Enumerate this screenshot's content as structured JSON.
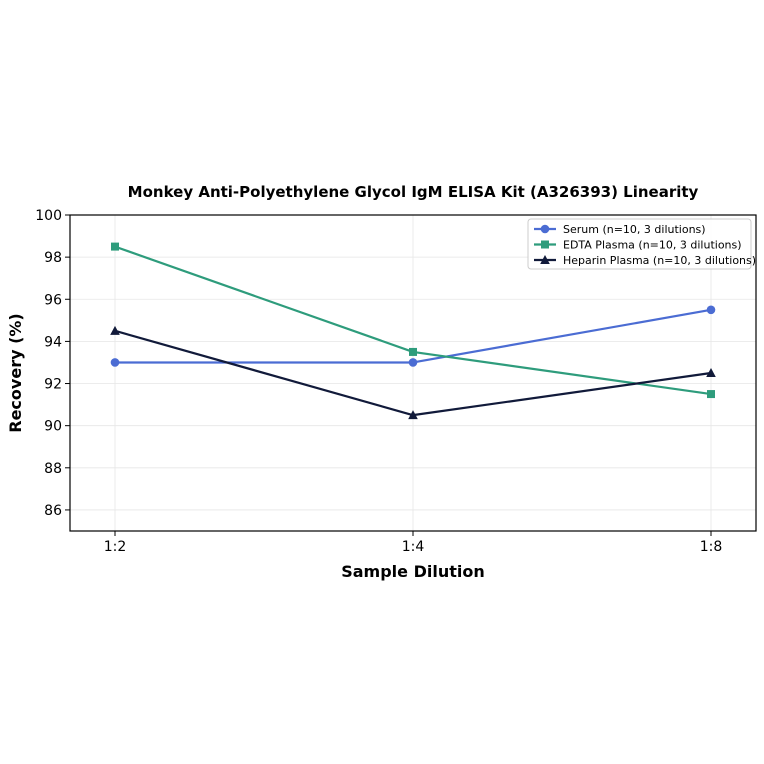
{
  "chart_data": {
    "type": "line",
    "title": "Monkey Anti-Polyethylene Glycol IgM ELISA Kit (A326393) Linearity",
    "xlabel": "Sample Dilution",
    "ylabel": "Recovery (%)",
    "categories": [
      "1:2",
      "1:4",
      "1:8"
    ],
    "ylim": [
      85,
      100
    ],
    "yticks": [
      86,
      88,
      90,
      92,
      94,
      96,
      98,
      100
    ],
    "grid": true,
    "legend_position": "top-right",
    "series": [
      {
        "name": "Serum (n=10, 3 dilutions)",
        "values": [
          93.0,
          93.0,
          95.5
        ],
        "color": "#4b6cd3",
        "marker": "circle"
      },
      {
        "name": "EDTA Plasma (n=10, 3 dilutions)",
        "values": [
          98.5,
          93.5,
          91.5
        ],
        "color": "#2e9c7c",
        "marker": "square"
      },
      {
        "name": "Heparin Plasma (n=10, 3 dilutions)",
        "values": [
          94.5,
          90.5,
          92.5
        ],
        "color": "#111a3a",
        "marker": "triangle"
      }
    ]
  }
}
